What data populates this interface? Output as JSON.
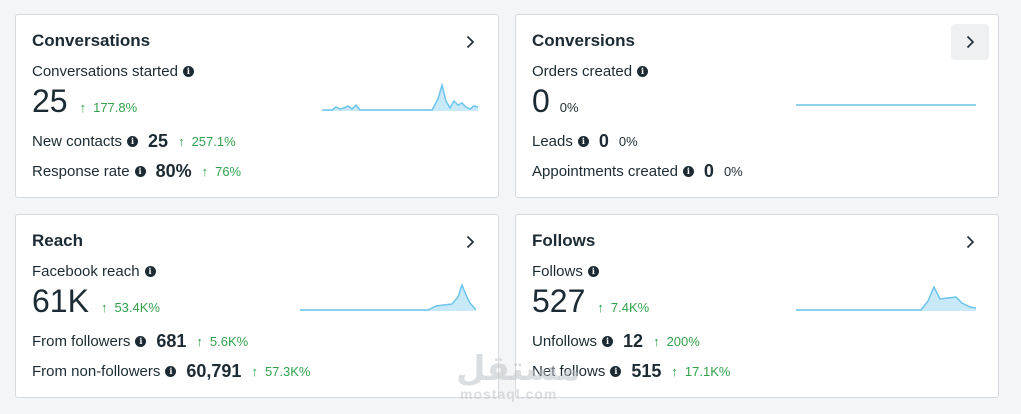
{
  "cards": {
    "conversations": {
      "title": "Conversations",
      "metric_label": "Conversations started",
      "value": "25",
      "delta": "177.8%",
      "sub1": {
        "label": "New contacts",
        "value": "25",
        "delta": "257.1%"
      },
      "sub2": {
        "label": "Response rate",
        "value": "80%",
        "delta": "76%"
      }
    },
    "conversions": {
      "title": "Conversions",
      "metric_label": "Orders created",
      "value": "0",
      "delta": "0%",
      "sub1": {
        "label": "Leads",
        "value": "0",
        "delta": "0%"
      },
      "sub2": {
        "label": "Appointments created",
        "value": "0",
        "delta": "0%"
      }
    },
    "reach": {
      "title": "Reach",
      "metric_label": "Facebook reach",
      "value": "61K",
      "delta": "53.4K%",
      "sub1": {
        "label": "From followers",
        "value": "681",
        "delta": "5.6K%"
      },
      "sub2": {
        "label": "From non-followers",
        "value": "60,791",
        "delta": "57.3K%"
      }
    },
    "follows": {
      "title": "Follows",
      "metric_label": "Follows",
      "value": "527",
      "delta": "7.4K%",
      "sub1": {
        "label": "Unfollows",
        "value": "12",
        "delta": "200%"
      },
      "sub2": {
        "label": "Net follows",
        "value": "515",
        "delta": "17.1K%"
      }
    }
  },
  "watermark": {
    "arabic": "مستقل",
    "latin": "mostaql.com"
  },
  "colors": {
    "positive": "#31a24c",
    "sparkline": "#6cc4ec",
    "sparkfill": "#c8e9f8"
  }
}
